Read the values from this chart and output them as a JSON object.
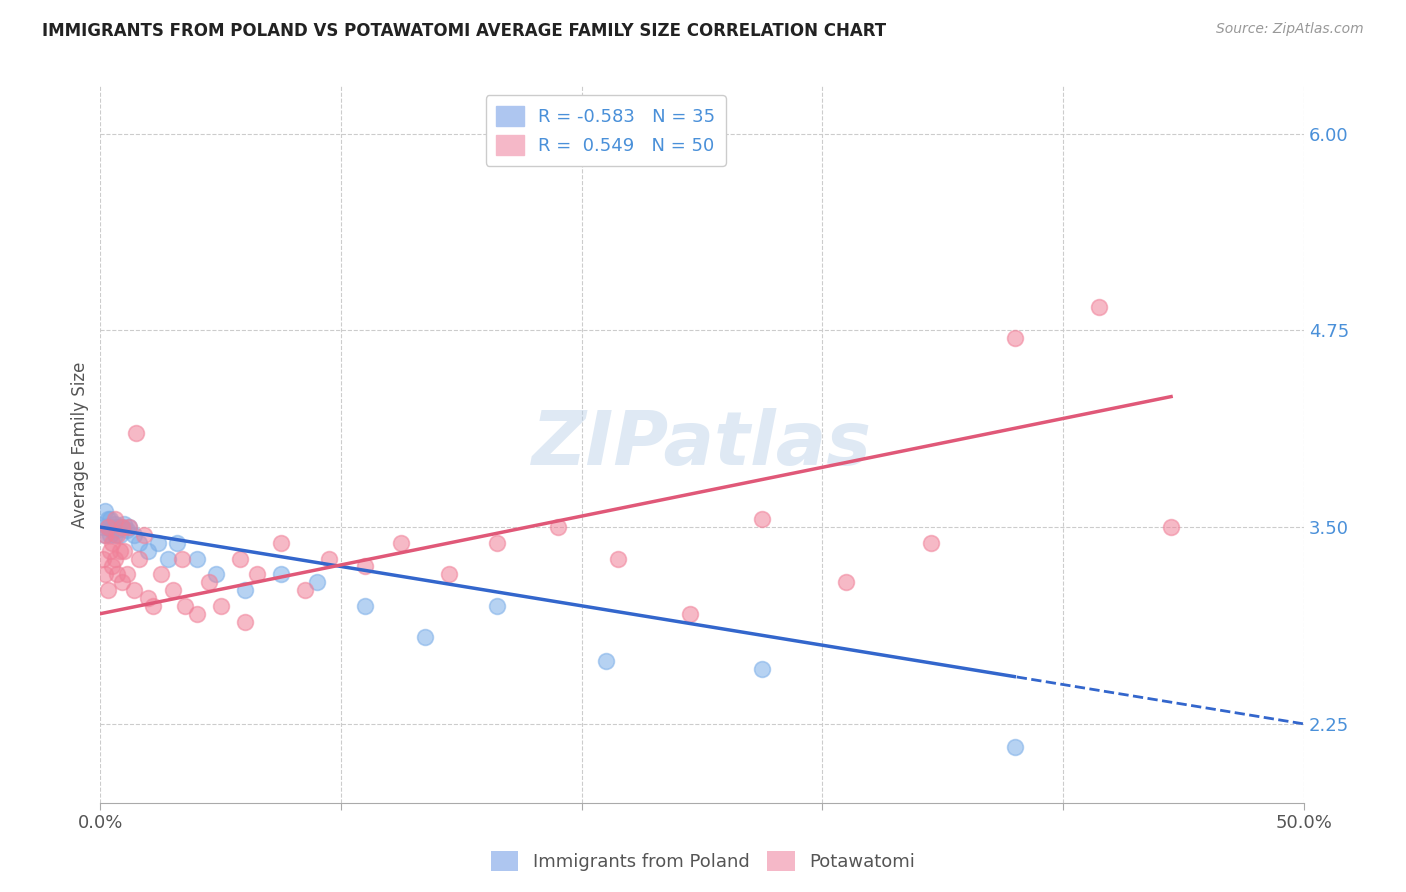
{
  "title": "IMMIGRANTS FROM POLAND VS POTAWATOMI AVERAGE FAMILY SIZE CORRELATION CHART",
  "source": "Source: ZipAtlas.com",
  "ylabel": "Average Family Size",
  "xlim": [
    0.0,
    0.5
  ],
  "ylim": [
    1.75,
    6.3
  ],
  "yticks": [
    2.25,
    3.5,
    4.75,
    6.0
  ],
  "xticks": [
    0.0,
    0.1,
    0.2,
    0.3,
    0.4,
    0.5
  ],
  "xticklabels": [
    "0.0%",
    "",
    "",
    "",
    "",
    "50.0%"
  ],
  "poland_color": "#7baee8",
  "potawatomi_color": "#f08098",
  "poland_line_color": "#3366cc",
  "potawatomi_line_color": "#e05878",
  "watermark": "ZIPatlas",
  "poland_x": [
    0.001,
    0.002,
    0.002,
    0.003,
    0.003,
    0.004,
    0.004,
    0.005,
    0.005,
    0.006,
    0.006,
    0.007,
    0.007,
    0.008,
    0.009,
    0.01,
    0.011,
    0.012,
    0.014,
    0.016,
    0.02,
    0.024,
    0.028,
    0.032,
    0.04,
    0.048,
    0.06,
    0.075,
    0.09,
    0.11,
    0.135,
    0.165,
    0.21,
    0.275,
    0.38
  ],
  "poland_y": [
    3.5,
    3.45,
    3.6,
    3.5,
    3.55,
    3.45,
    3.55,
    3.5,
    3.48,
    3.52,
    3.45,
    3.5,
    3.48,
    3.45,
    3.5,
    3.52,
    3.48,
    3.5,
    3.45,
    3.4,
    3.35,
    3.4,
    3.3,
    3.4,
    3.3,
    3.2,
    3.1,
    3.2,
    3.15,
    3.0,
    2.8,
    3.0,
    2.65,
    2.6,
    2.1
  ],
  "potawatomi_x": [
    0.001,
    0.002,
    0.002,
    0.003,
    0.003,
    0.004,
    0.005,
    0.005,
    0.006,
    0.006,
    0.007,
    0.007,
    0.008,
    0.009,
    0.009,
    0.01,
    0.011,
    0.012,
    0.014,
    0.016,
    0.018,
    0.022,
    0.025,
    0.03,
    0.034,
    0.04,
    0.045,
    0.05,
    0.058,
    0.065,
    0.075,
    0.085,
    0.095,
    0.11,
    0.125,
    0.145,
    0.165,
    0.19,
    0.215,
    0.245,
    0.275,
    0.31,
    0.345,
    0.38,
    0.415,
    0.445,
    0.015,
    0.02,
    0.035,
    0.06
  ],
  "potawatomi_y": [
    3.3,
    3.2,
    3.45,
    3.5,
    3.1,
    3.35,
    3.25,
    3.4,
    3.3,
    3.55,
    3.2,
    3.45,
    3.35,
    3.5,
    3.15,
    3.35,
    3.2,
    3.5,
    3.1,
    3.3,
    3.45,
    3.0,
    3.2,
    3.1,
    3.3,
    2.95,
    3.15,
    3.0,
    3.3,
    3.2,
    3.4,
    3.1,
    3.3,
    3.25,
    3.4,
    3.2,
    3.4,
    3.5,
    3.3,
    2.95,
    3.55,
    3.15,
    3.4,
    4.7,
    4.9,
    3.5,
    4.1,
    3.05,
    3.0,
    2.9
  ]
}
